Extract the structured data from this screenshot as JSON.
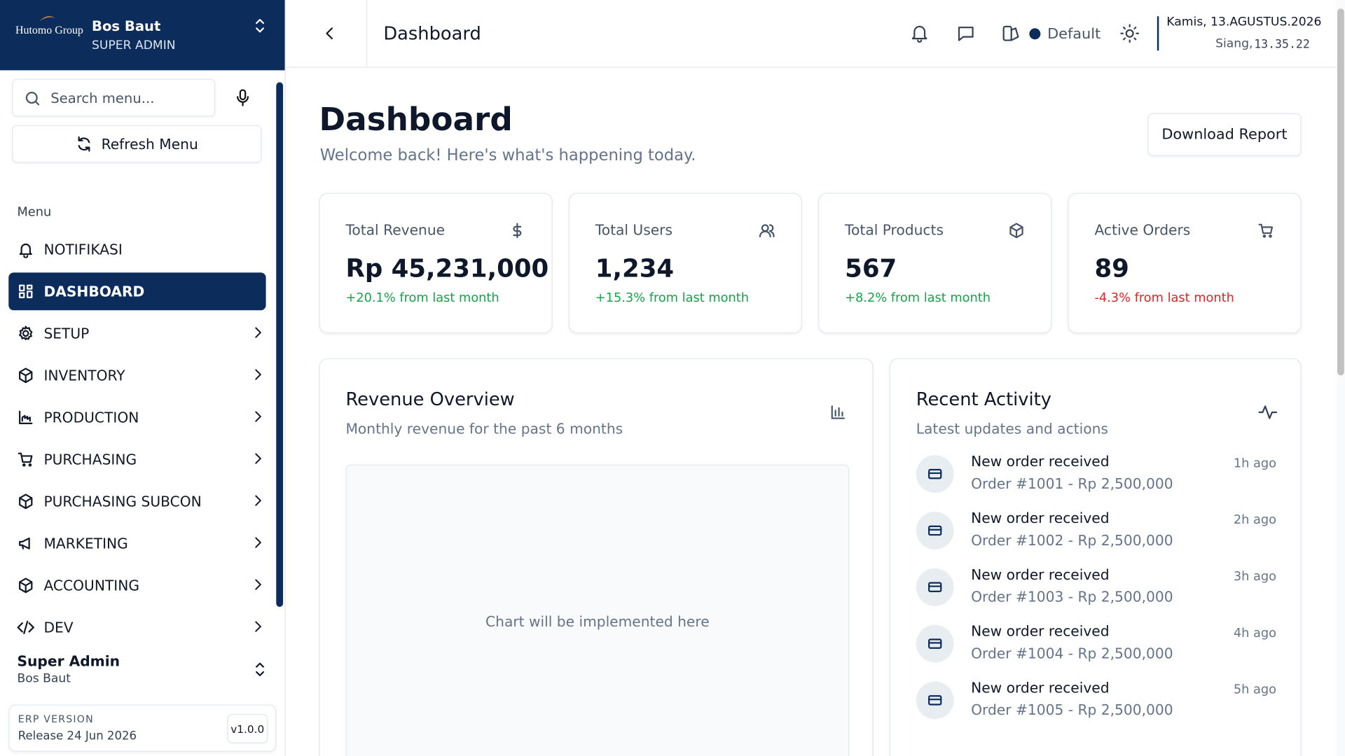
{
  "sidebar": {
    "brand": "Hutomo Group",
    "user_name": "Bos Baut",
    "user_role": "SUPER ADMIN",
    "search_placeholder": "Search menu...",
    "refresh": "Refresh Menu",
    "menu_heading": "Menu",
    "menu": [
      "NOTIFIKASI",
      "DASHBOARD",
      "SETUP",
      "INVENTORY",
      "PRODUCTION",
      "PURCHASING",
      "PURCHASING SUBCON",
      "MARKETING",
      "ACCOUNTING",
      "DEV"
    ],
    "footer_user": {
      "role": "Super Admin",
      "name": "Bos Baut"
    },
    "version": {
      "label": "ERP VERSION",
      "release": "Release 24 Jun 2026",
      "badge": "v1.0.0"
    }
  },
  "topbar": {
    "title": "Dashboard",
    "theme": "Default",
    "date": "Kamis, 13.AGUSTUS.2026",
    "period": "Siang,",
    "time": "13.35.22"
  },
  "page": {
    "title": "Dashboard",
    "subtitle": "Welcome back! Here's what's happening today.",
    "download": "Download Report"
  },
  "stats": [
    {
      "label": "Total Revenue",
      "value": "Rp 45,231,000",
      "change": "+20.1% from last month"
    },
    {
      "label": "Total Users",
      "value": "1,234",
      "change": "+15.3% from last month"
    },
    {
      "label": "Total Products",
      "value": "567",
      "change": "+8.2% from last month"
    },
    {
      "label": "Active Orders",
      "value": "89",
      "change": "-4.3% from last month"
    }
  ],
  "revenue": {
    "title": "Revenue Overview",
    "subtitle": "Monthly revenue for the past 6 months",
    "placeholder": "Chart will be implemented here"
  },
  "activity": {
    "title": "Recent Activity",
    "subtitle": "Latest updates and actions",
    "items": [
      {
        "title": "New order received",
        "detail": "Order #1001 - Rp 2,500,000",
        "time": "1h ago"
      },
      {
        "title": "New order received",
        "detail": "Order #1002 - Rp 2,500,000",
        "time": "2h ago"
      },
      {
        "title": "New order received",
        "detail": "Order #1003 - Rp 2,500,000",
        "time": "3h ago"
      },
      {
        "title": "New order received",
        "detail": "Order #1004 - Rp 2,500,000",
        "time": "4h ago"
      },
      {
        "title": "New order received",
        "detail": "Order #1005 - Rp 2,500,000",
        "time": "5h ago"
      }
    ]
  }
}
